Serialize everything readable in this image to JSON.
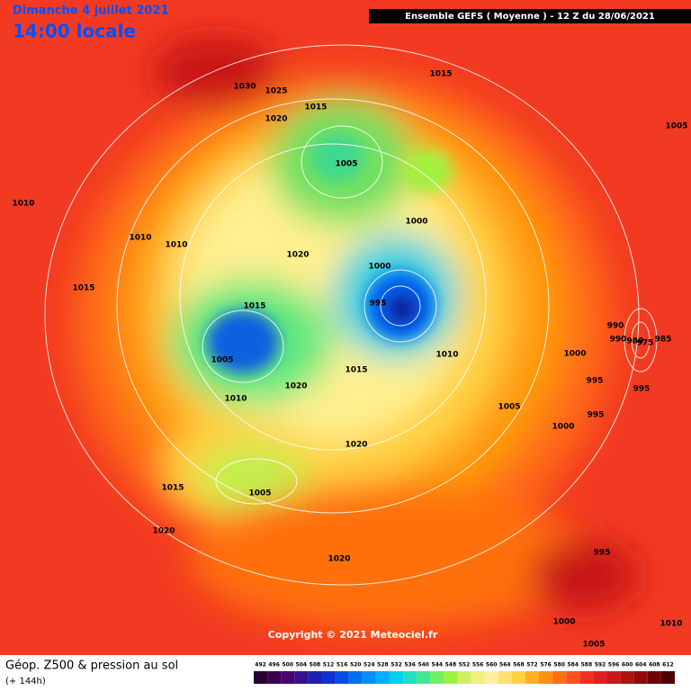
{
  "header": {
    "date": "Dimanche 4 juillet 2021",
    "time": "14:00 locale",
    "run": "Ensemble GEFS  ( Moyenne )  -  12 Z du 28/06/2021"
  },
  "copyright": "Copyright © 2021 Meteociel.fr",
  "footer": {
    "title": "Géop. Z500 & pression au sol",
    "lead": "(+ 144h)"
  },
  "colorbar": {
    "ticks": [
      492,
      496,
      500,
      504,
      508,
      512,
      516,
      520,
      524,
      528,
      532,
      536,
      540,
      544,
      548,
      552,
      556,
      560,
      564,
      568,
      572,
      576,
      580,
      584,
      588,
      592,
      596,
      600,
      604,
      608,
      612
    ],
    "colors": [
      "#2a0030",
      "#3c0050",
      "#4a0070",
      "#3a1090",
      "#2020b0",
      "#1030d0",
      "#0050e8",
      "#0070f0",
      "#0090f8",
      "#00b0ff",
      "#00d0f0",
      "#20e0c0",
      "#40e890",
      "#70f060",
      "#a0f040",
      "#d0f060",
      "#f0f080",
      "#fff0a0",
      "#ffe070",
      "#ffd040",
      "#ffb020",
      "#ff9010",
      "#ff7010",
      "#ff5020",
      "#f03020",
      "#e02020",
      "#c81818",
      "#b01010",
      "#900a0a",
      "#700505",
      "#500000"
    ]
  },
  "isobar_labels": [
    1030,
    1025,
    1015,
    1020,
    1015,
    1005,
    1000,
    1010,
    1010,
    1010,
    1020,
    1000,
    995,
    1015,
    1015,
    1005,
    1015,
    1010,
    990,
    990,
    980,
    975,
    985,
    1005,
    1000,
    995,
    995,
    1010,
    1020,
    1005,
    995,
    1000,
    1020,
    1015,
    1005,
    1020,
    995,
    1020,
    1000,
    1010,
    1005
  ]
}
